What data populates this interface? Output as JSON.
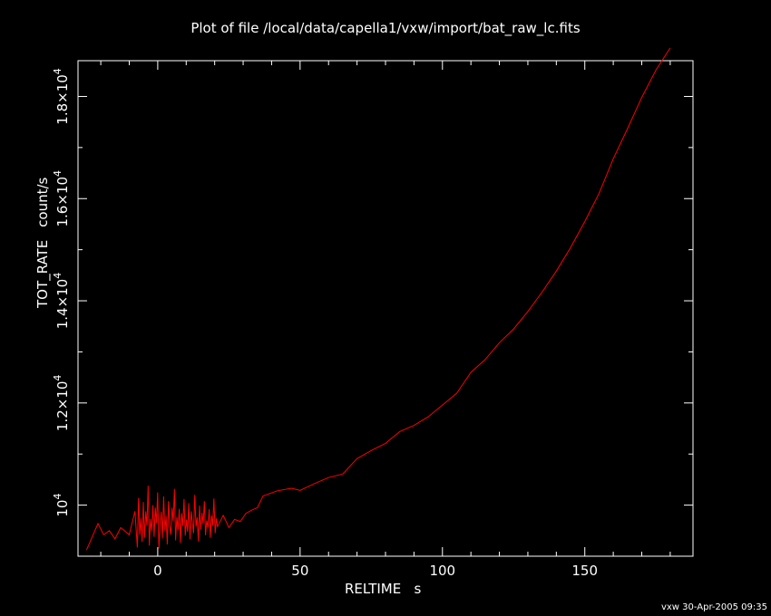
{
  "chart_data": {
    "type": "line",
    "title": "Plot of file /local/data/capella1/vxw/import/bat_raw_lc.fits",
    "xlabel": "RELTIME",
    "xunit": "s",
    "ylabel": "TOT_RATE",
    "yunit": "count/s",
    "xlim": [
      -28,
      188
    ],
    "ylim": [
      9000,
      18700
    ],
    "xticks": [
      0,
      50,
      100,
      150
    ],
    "xtick_labels": [
      "0",
      "50",
      "100",
      "150"
    ],
    "yticks": [
      10000,
      12000,
      14000,
      16000,
      18000
    ],
    "ytick_labels": [
      {
        "mantissa": "",
        "base": "10",
        "exp": "4"
      },
      {
        "mantissa": "1.2×",
        "base": "10",
        "exp": "4"
      },
      {
        "mantissa": "1.4×",
        "base": "10",
        "exp": "4"
      },
      {
        "mantissa": "1.6×",
        "base": "10",
        "exp": "4"
      },
      {
        "mantissa": "1.8×",
        "base": "10",
        "exp": "4"
      }
    ],
    "series": [
      {
        "name": "TOT_RATE",
        "color": "#ff0000",
        "smooth": {
          "x": [
            -25,
            -21,
            -19,
            -17,
            -15,
            -13,
            -10,
            -8,
            21,
            23,
            25,
            27,
            29,
            31,
            33,
            35,
            37,
            42,
            47,
            50,
            55,
            60,
            65,
            70,
            75,
            80,
            85,
            90,
            95,
            100,
            105,
            110,
            115,
            120,
            125,
            130,
            135,
            140,
            145,
            150,
            155,
            160,
            165,
            170,
            175,
            180
          ],
          "y": [
            9120,
            9640,
            9420,
            9500,
            9340,
            9560,
            9420,
            9880,
            9580,
            9800,
            9560,
            9720,
            9680,
            9840,
            9900,
            9950,
            10180,
            10280,
            10330,
            10290,
            10420,
            10540,
            10610,
            10910,
            11070,
            11210,
            11440,
            11560,
            11730,
            11960,
            12190,
            12600,
            12850,
            13180,
            13450,
            13790,
            14170,
            14580,
            15040,
            15550,
            16100,
            16780,
            17370,
            17980,
            18520,
            18950
          ]
        },
        "noisy": {
          "x_start": -8,
          "x_end": 21,
          "y": [
            9880,
            9520,
            9170,
            10140,
            9420,
            9750,
            9280,
            10060,
            9360,
            9880,
            9600,
            10380,
            9210,
            9730,
            9490,
            10000,
            9380,
            9950,
            9650,
            10250,
            9150,
            9620,
            9870,
            9350,
            10170,
            9500,
            9790,
            9230,
            10080,
            9600,
            9420,
            9950,
            9690,
            10320,
            9310,
            9770,
            9510,
            9930,
            9260,
            9840,
            9590,
            10120,
            9400,
            9720,
            9480,
            10040,
            9330,
            9880,
            9660,
            9450,
            10200,
            9580,
            9760,
            9290,
            9990,
            9520,
            9850,
            9630,
            10080,
            9410,
            9700,
            9560,
            9920,
            9360,
            9800,
            9600,
            10130,
            9450,
            9740,
            9580
          ]
        }
      }
    ]
  },
  "footer": "vxw 30-Apr-2005 09:35"
}
